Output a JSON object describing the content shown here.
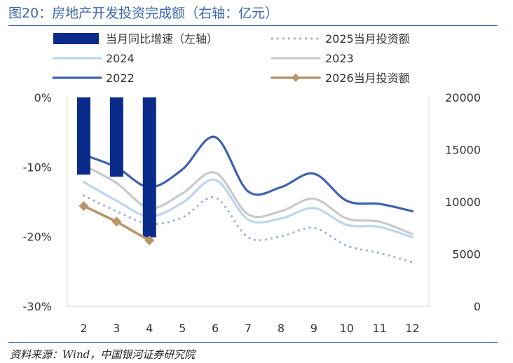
{
  "header": {
    "title": "图20：房地产开发投资完成额（右轴：亿元）"
  },
  "footer": {
    "source": "资料来源：Wind，中国银河证券研究院"
  },
  "colors": {
    "accent": "#3a66b0",
    "bar": "#0a2b8a",
    "s2025": "#9fb1e0",
    "s2024": "#bcd6ef",
    "s2023": "#c9c9c9",
    "s2022": "#3d62b0",
    "s2026": "#b8956a"
  },
  "chart_data": {
    "type": "bar+line",
    "categories": [
      "2",
      "3",
      "4",
      "5",
      "6",
      "7",
      "8",
      "9",
      "10",
      "11",
      "12"
    ],
    "left_axis": {
      "ylim": [
        -30,
        0
      ],
      "ticks": [
        "0%",
        "-10%",
        "-20%",
        "-30%"
      ],
      "tick_values": [
        0,
        -10,
        -20,
        -30
      ]
    },
    "right_axis": {
      "ylim": [
        0,
        20000
      ],
      "ticks": [
        "20000",
        "15000",
        "10000",
        "5000",
        "0"
      ],
      "tick_values": [
        20000,
        15000,
        10000,
        5000,
        0
      ]
    },
    "series": [
      {
        "name": "当月同比增速（左轴）",
        "type": "bar",
        "axis": "left",
        "color": "#0a2b8a",
        "values": [
          -11.1,
          -11.4,
          -20.1,
          null,
          null,
          null,
          null,
          null,
          null,
          null,
          null
        ]
      },
      {
        "name": "2025当月投资额",
        "type": "line",
        "style": "dotted",
        "axis": "right",
        "color": "#9fb1e0",
        "values": [
          10600,
          9100,
          7900,
          8500,
          10400,
          6600,
          6700,
          7500,
          5800,
          5100,
          4200
        ]
      },
      {
        "name": "2024",
        "type": "line",
        "axis": "right",
        "color": "#bcd6ef",
        "values": [
          11900,
          10100,
          8600,
          9900,
          12100,
          8300,
          8400,
          9400,
          7800,
          7600,
          6600
        ]
      },
      {
        "name": "2023",
        "type": "line",
        "axis": "right",
        "color": "#c9c9c9",
        "values": [
          13500,
          11800,
          9400,
          10800,
          12800,
          8800,
          9100,
          10300,
          8400,
          8100,
          6900
        ]
      },
      {
        "name": "2022",
        "type": "line",
        "axis": "right",
        "color": "#3d62b0",
        "values": [
          14500,
          13300,
          11400,
          13100,
          16200,
          11000,
          11400,
          12700,
          10100,
          9800,
          9100
        ]
      },
      {
        "name": "2026当月投资额",
        "type": "line",
        "marker": "diamond",
        "axis": "right",
        "color": "#b8956a",
        "values": [
          9600,
          8100,
          6300,
          null,
          null,
          null,
          null,
          null,
          null,
          null,
          null
        ]
      }
    ],
    "legend": {
      "placement": "top",
      "columns": 2
    },
    "grid": false
  }
}
